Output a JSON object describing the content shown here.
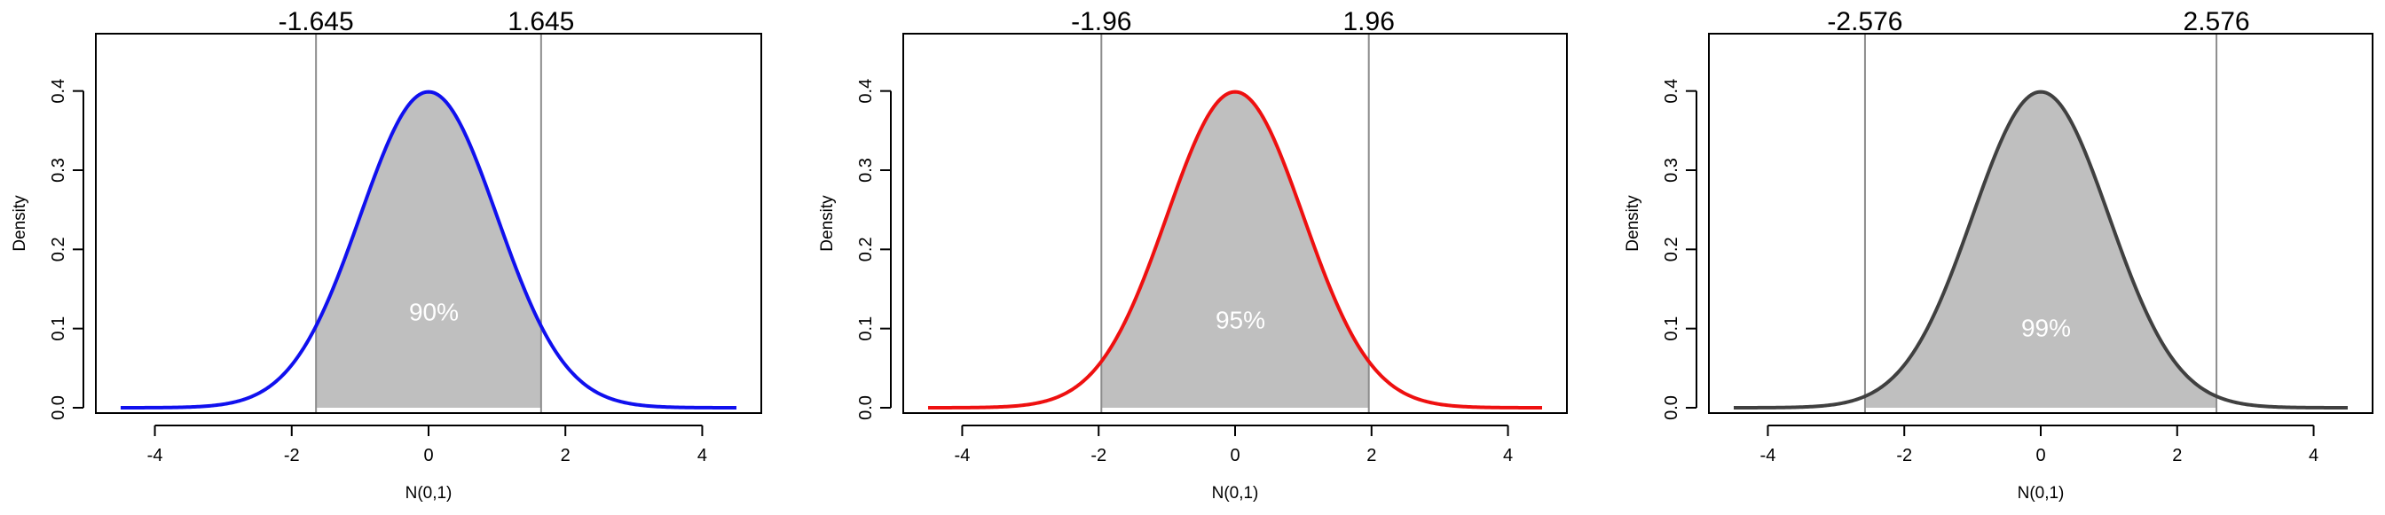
{
  "chart_data": [
    {
      "type": "area",
      "title": "",
      "xlabel": "N(0,1)",
      "ylabel": "Density",
      "xlim": [
        -4.5,
        4.5
      ],
      "ylim": [
        0,
        0.45
      ],
      "x_ticks": [
        -4,
        -2,
        0,
        2,
        4
      ],
      "y_ticks": [
        0.0,
        0.1,
        0.2,
        0.3,
        0.4
      ],
      "x_tick_labels": [
        "-4",
        "-2",
        "0",
        "2",
        "4"
      ],
      "y_tick_labels": [
        "0.0",
        "0.1",
        "0.2",
        "0.3",
        "0.4"
      ],
      "curve": "standard normal density",
      "curve_color": "#1010ee",
      "fill_color": "#bfbfbf",
      "critical_values": [
        -1.645,
        1.645
      ],
      "critical_labels": [
        "-1.645",
        "1.645"
      ],
      "center_label": "90%",
      "center_label_y": 0.11,
      "grid": false
    },
    {
      "type": "area",
      "title": "",
      "xlabel": "N(0,1)",
      "ylabel": "Density",
      "xlim": [
        -4.5,
        4.5
      ],
      "ylim": [
        0,
        0.45
      ],
      "x_ticks": [
        -4,
        -2,
        0,
        2,
        4
      ],
      "y_ticks": [
        0.0,
        0.1,
        0.2,
        0.3,
        0.4
      ],
      "x_tick_labels": [
        "-4",
        "-2",
        "0",
        "2",
        "4"
      ],
      "y_tick_labels": [
        "0.0",
        "0.1",
        "0.2",
        "0.3",
        "0.4"
      ],
      "curve": "standard normal density",
      "curve_color": "#ee1010",
      "fill_color": "#bfbfbf",
      "critical_values": [
        -1.96,
        1.96
      ],
      "critical_labels": [
        "-1.96",
        "1.96"
      ],
      "center_label": "95%",
      "center_label_y": 0.1,
      "grid": false
    },
    {
      "type": "area",
      "title": "",
      "xlabel": "N(0,1)",
      "ylabel": "Density",
      "xlim": [
        -4.5,
        4.5
      ],
      "ylim": [
        0,
        0.45
      ],
      "x_ticks": [
        -4,
        -2,
        0,
        2,
        4
      ],
      "y_ticks": [
        0.0,
        0.1,
        0.2,
        0.3,
        0.4
      ],
      "x_tick_labels": [
        "-4",
        "-2",
        "0",
        "2",
        "4"
      ],
      "y_tick_labels": [
        "0.0",
        "0.1",
        "0.2",
        "0.3",
        "0.4"
      ],
      "curve": "standard normal density",
      "curve_color": "#404040",
      "fill_color": "#bfbfbf",
      "critical_values": [
        -2.576,
        2.576
      ],
      "critical_labels": [
        "-2.576",
        "2.576"
      ],
      "center_label": "99%",
      "center_label_y": 0.09,
      "grid": false
    }
  ]
}
